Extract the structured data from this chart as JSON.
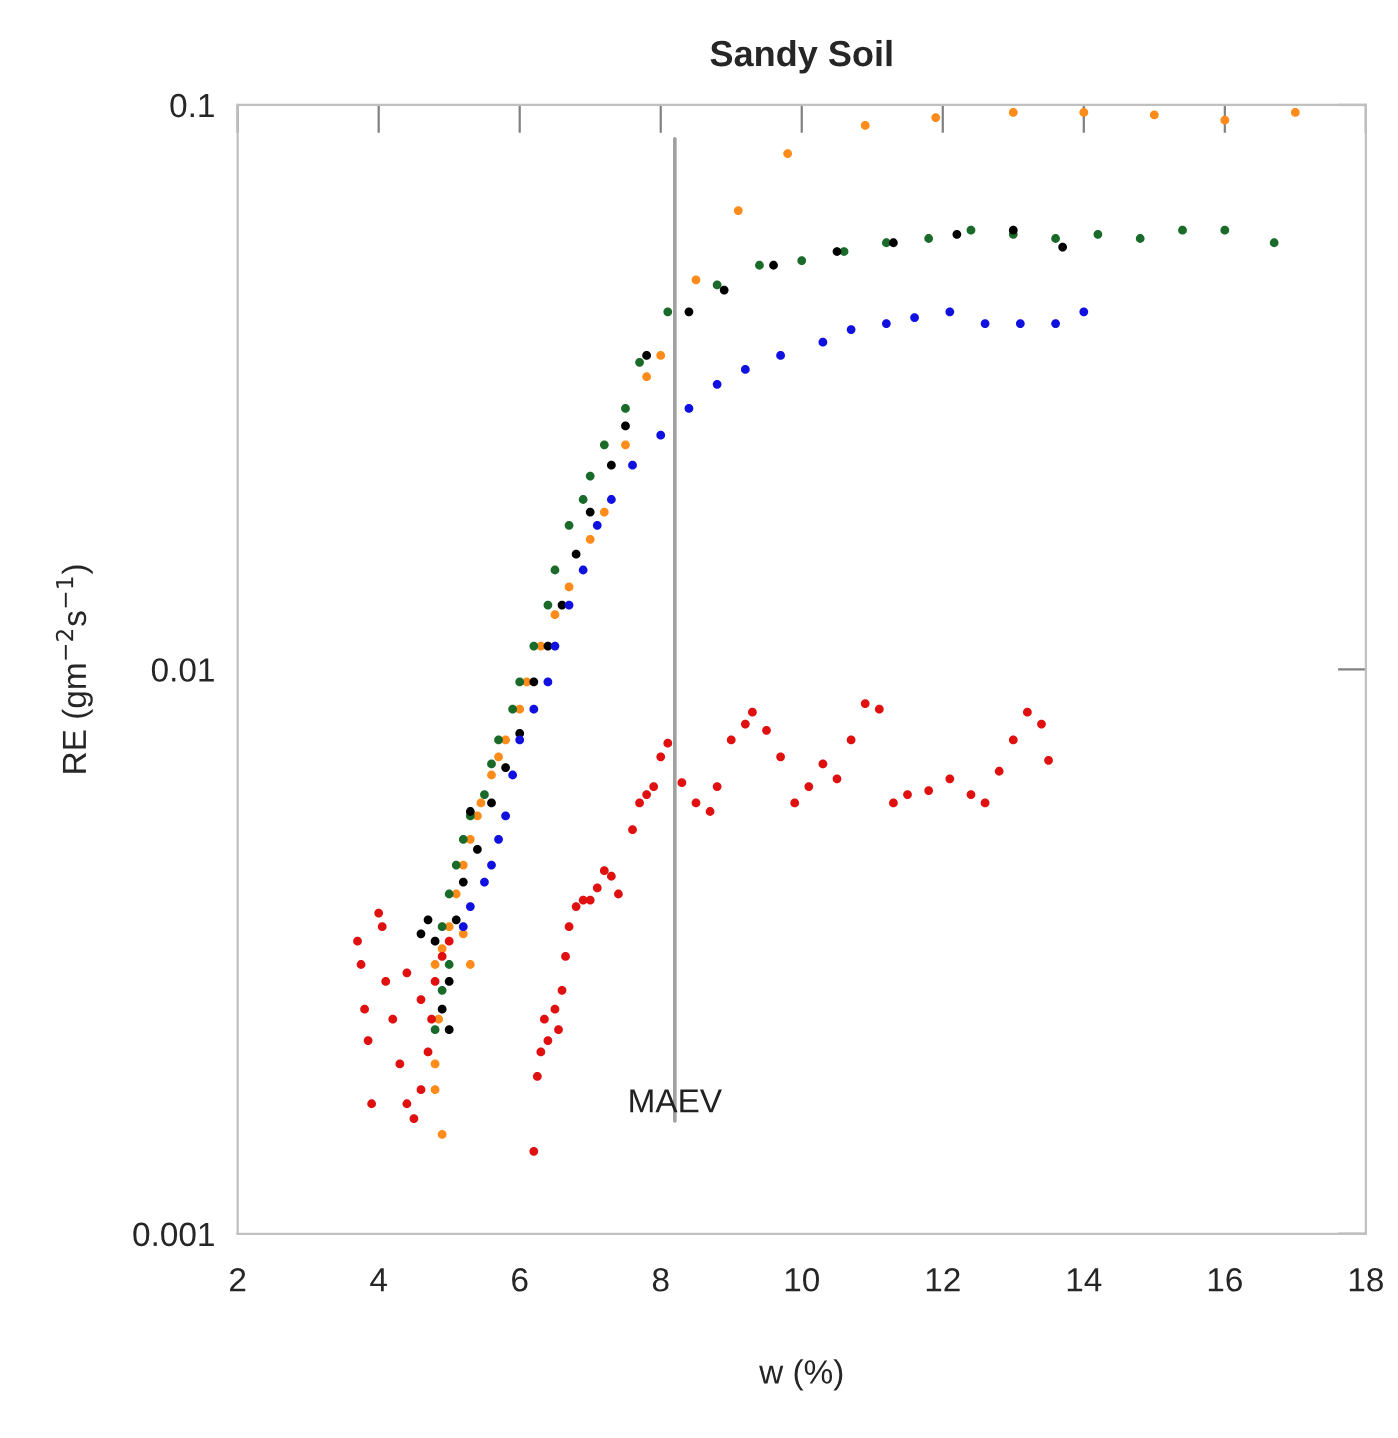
{
  "chart_data": {
    "type": "scatter",
    "title": "Sandy Soil",
    "xlabel": "w (%)",
    "ylabel": "RE (gm$^{−2}$s$^{−1}$)",
    "log": "y",
    "grid": false,
    "legend": false,
    "marker": "circle",
    "xlim": [
      2,
      18
    ],
    "xticks": [
      2,
      4,
      6,
      8,
      10,
      12,
      14,
      16,
      18
    ],
    "ylim": [
      0.001,
      0.1
    ],
    "yticks": [
      0.001,
      0.01,
      0.1
    ],
    "ref_lines": [
      {
        "axis": "x",
        "value": 8.2,
        "label": "MAEV",
        "color": "#a0a0a0"
      }
    ],
    "series": [
      {
        "color": "#ff8c1a",
        "x": [
          4.8,
          4.8,
          4.85,
          4.8,
          4.9,
          5.0,
          5.1,
          5.2,
          5.3,
          5.4,
          5.45,
          5.6,
          5.7,
          5.8,
          6.0,
          6.1,
          6.3,
          6.5,
          6.7,
          7.0,
          7.2,
          7.5,
          7.8,
          8.0,
          8.5,
          9.1,
          9.8,
          10.9,
          11.9,
          13,
          14,
          15,
          16,
          17,
          5.2,
          5.3,
          4.9
        ],
        "values": [
          0.0018,
          0.002,
          0.0024,
          0.003,
          0.0032,
          0.0035,
          0.004,
          0.0045,
          0.005,
          0.0055,
          0.0058,
          0.0065,
          0.007,
          0.0075,
          0.0085,
          0.0095,
          0.011,
          0.0125,
          0.014,
          0.017,
          0.019,
          0.025,
          0.033,
          0.036,
          0.049,
          0.065,
          0.082,
          0.092,
          0.095,
          0.097,
          0.097,
          0.096,
          0.094,
          0.097,
          0.0034,
          0.003,
          0.0015
        ]
      },
      {
        "color": "#1a6b2a",
        "x": [
          4.8,
          4.9,
          5.0,
          4.9,
          5.0,
          5.1,
          5.2,
          5.3,
          5.5,
          5.6,
          5.7,
          5.9,
          6.0,
          6.2,
          6.4,
          6.5,
          6.7,
          6.9,
          7.0,
          7.2,
          7.5,
          7.7,
          8.1,
          8.8,
          9.4,
          10,
          10.6,
          11.2,
          11.8,
          12.4,
          13.0,
          13.6,
          14.2,
          14.8,
          15.4,
          16,
          16.7
        ],
        "values": [
          0.0023,
          0.0027,
          0.003,
          0.0035,
          0.004,
          0.0045,
          0.005,
          0.0055,
          0.006,
          0.0068,
          0.0075,
          0.0085,
          0.0095,
          0.011,
          0.013,
          0.015,
          0.018,
          0.02,
          0.022,
          0.025,
          0.029,
          0.035,
          0.043,
          0.048,
          0.052,
          0.053,
          0.055,
          0.057,
          0.058,
          0.06,
          0.059,
          0.058,
          0.059,
          0.058,
          0.06,
          0.06,
          0.057
        ]
      },
      {
        "color": "#000000",
        "x": [
          4.6,
          4.7,
          4.8,
          4.9,
          5.0,
          5.0,
          5.1,
          5.2,
          5.3,
          5.4,
          5.6,
          5.8,
          6.0,
          6.2,
          6.4,
          6.6,
          6.8,
          7.0,
          7.3,
          7.5,
          7.8,
          8.4,
          8.9,
          9.6,
          10.5,
          11.3,
          12.2,
          13,
          13.7
        ],
        "values": [
          0.0034,
          0.0036,
          0.0033,
          0.0025,
          0.0028,
          0.0023,
          0.0036,
          0.0042,
          0.0056,
          0.0048,
          0.0058,
          0.0067,
          0.0077,
          0.0095,
          0.011,
          0.013,
          0.016,
          0.019,
          0.023,
          0.027,
          0.036,
          0.043,
          0.047,
          0.052,
          0.055,
          0.057,
          0.059,
          0.06,
          0.056
        ]
      },
      {
        "color": "#1010e0",
        "x": [
          5.2,
          5.3,
          5.5,
          5.6,
          5.7,
          5.8,
          5.9,
          6.0,
          6.2,
          6.4,
          6.5,
          6.7,
          6.9,
          7.1,
          7.3,
          7.6,
          8.0,
          8.4,
          8.8,
          9.2,
          9.7,
          10.3,
          10.7,
          11.2,
          11.6,
          12.1,
          12.6,
          13.1,
          13.6,
          14.0
        ],
        "values": [
          0.0035,
          0.0038,
          0.0042,
          0.0045,
          0.005,
          0.0055,
          0.0065,
          0.0075,
          0.0085,
          0.0095,
          0.011,
          0.013,
          0.015,
          0.018,
          0.02,
          0.023,
          0.026,
          0.029,
          0.032,
          0.034,
          0.036,
          0.038,
          0.04,
          0.041,
          0.042,
          0.043,
          0.041,
          0.041,
          0.041,
          0.043
        ]
      },
      {
        "color": "#e01010",
        "x": [
          3.7,
          3.75,
          3.8,
          3.85,
          3.9,
          4.0,
          4.05,
          4.1,
          4.2,
          4.3,
          4.4,
          4.5,
          4.6,
          4.7,
          4.75,
          4.8,
          4.9,
          5.0,
          4.6,
          4.4,
          6.2,
          6.25,
          6.3,
          6.35,
          6.4,
          6.5,
          6.55,
          6.6,
          6.65,
          6.7,
          6.8,
          6.9,
          7.0,
          7.1,
          7.2,
          7.3,
          7.4,
          7.6,
          7.7,
          7.8,
          7.9,
          8.0,
          8.1,
          8.3,
          8.5,
          8.7,
          8.8,
          9.0,
          9.2,
          9.3,
          9.5,
          9.7,
          9.9,
          10.1,
          10.3,
          10.5,
          10.7,
          10.9,
          11.1,
          11.3,
          11.5,
          11.8,
          12.1,
          12.4,
          12.6,
          12.8,
          13.0,
          13.2,
          13.4,
          13.5
        ],
        "values": [
          0.0033,
          0.003,
          0.0025,
          0.0022,
          0.0017,
          0.0037,
          0.0035,
          0.0028,
          0.0024,
          0.002,
          0.0017,
          0.0016,
          0.0018,
          0.0021,
          0.0024,
          0.0028,
          0.0031,
          0.0033,
          0.0026,
          0.0029,
          0.0014,
          0.0019,
          0.0021,
          0.0024,
          0.0022,
          0.0025,
          0.0023,
          0.0027,
          0.0031,
          0.0035,
          0.0038,
          0.0039,
          0.0039,
          0.0041,
          0.0044,
          0.0043,
          0.004,
          0.0052,
          0.0058,
          0.006,
          0.0062,
          0.007,
          0.0074,
          0.0063,
          0.0058,
          0.0056,
          0.0062,
          0.0075,
          0.008,
          0.0084,
          0.0078,
          0.007,
          0.0058,
          0.0062,
          0.0068,
          0.0064,
          0.0075,
          0.0087,
          0.0085,
          0.0058,
          0.006,
          0.0061,
          0.0064,
          0.006,
          0.0058,
          0.0066,
          0.0075,
          0.0084,
          0.008,
          0.0069
        ]
      }
    ]
  }
}
